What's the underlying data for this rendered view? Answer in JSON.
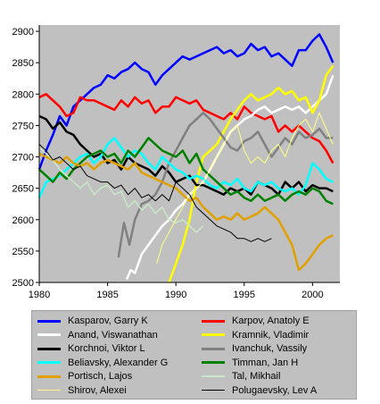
{
  "chart_data": {
    "type": "line",
    "title": "",
    "xlabel": "",
    "ylabel": "",
    "xlim": [
      1980,
      2002
    ],
    "ylim": [
      2500,
      2910
    ],
    "x_ticks": [
      1980,
      1985,
      1990,
      1995,
      2000
    ],
    "y_ticks": [
      2500,
      2550,
      2600,
      2650,
      2700,
      2750,
      2800,
      2850,
      2900
    ],
    "grid": false,
    "legend_position": "bottom",
    "plot_background": "#c0c0c0",
    "series": [
      {
        "name": "Kasparov, Garry K",
        "color": "#0000ff",
        "width": 2.5,
        "x": [
          1980,
          1980.5,
          1981,
          1981.5,
          1982,
          1982.5,
          1983,
          1983.5,
          1984,
          1984.5,
          1985,
          1985.5,
          1986,
          1986.5,
          1987,
          1987.5,
          1988,
          1988.5,
          1989,
          1989.5,
          1990,
          1990.5,
          1991,
          1991.5,
          1992,
          1992.5,
          1993,
          1993.5,
          1994,
          1994.5,
          1995,
          1995.5,
          1996,
          1996.5,
          1997,
          1997.5,
          1998,
          1998.5,
          1999,
          1999.5,
          2000,
          2000.5,
          2001,
          2001.5
        ],
        "y": [
          2680,
          2710,
          2735,
          2765,
          2750,
          2780,
          2790,
          2800,
          2810,
          2815,
          2830,
          2825,
          2835,
          2840,
          2850,
          2840,
          2835,
          2815,
          2830,
          2840,
          2850,
          2860,
          2855,
          2860,
          2865,
          2870,
          2875,
          2865,
          2870,
          2860,
          2865,
          2880,
          2870,
          2875,
          2860,
          2865,
          2855,
          2845,
          2870,
          2870,
          2885,
          2895,
          2875,
          2850
        ]
      },
      {
        "name": "Karpov, Anatoly E",
        "color": "#ff0000",
        "width": 2.5,
        "x": [
          1980,
          1980.5,
          1981,
          1981.5,
          1982,
          1982.5,
          1983,
          1983.5,
          1984,
          1984.5,
          1985,
          1985.5,
          1986,
          1986.5,
          1987,
          1987.5,
          1988,
          1988.5,
          1989,
          1989.5,
          1990,
          1990.5,
          1991,
          1991.5,
          1992,
          1992.5,
          1993,
          1993.5,
          1994,
          1994.5,
          1995,
          1995.5,
          1996,
          1996.5,
          1997,
          1997.5,
          1998,
          1998.5,
          1999,
          1999.5,
          2000,
          2000.5,
          2001,
          2001.5
        ],
        "y": [
          2795,
          2800,
          2790,
          2780,
          2765,
          2770,
          2795,
          2790,
          2790,
          2785,
          2780,
          2775,
          2790,
          2780,
          2795,
          2785,
          2790,
          2770,
          2780,
          2780,
          2795,
          2790,
          2785,
          2790,
          2775,
          2770,
          2765,
          2760,
          2770,
          2760,
          2780,
          2770,
          2765,
          2760,
          2765,
          2740,
          2750,
          2740,
          2750,
          2740,
          2730,
          2725,
          2710,
          2690
        ]
      },
      {
        "name": "Anand, Viswanathan",
        "color": "#ffffff",
        "width": 2.5,
        "x": [
          1986.4,
          1986.7,
          1987,
          1987.5,
          1988,
          1988.5,
          1989,
          1989.5,
          1990,
          1990.5,
          1991,
          1991.5,
          1992,
          1992.5,
          1993,
          1993.5,
          1994,
          1994.5,
          1995,
          1995.5,
          1996,
          1996.5,
          1997,
          1997.5,
          1998,
          1998.5,
          1999,
          1999.5,
          2000,
          2000.5,
          2001,
          2001.5
        ],
        "y": [
          2505,
          2520,
          2515,
          2545,
          2560,
          2575,
          2590,
          2600,
          2615,
          2625,
          2640,
          2650,
          2660,
          2680,
          2700,
          2720,
          2740,
          2750,
          2760,
          2765,
          2775,
          2780,
          2770,
          2775,
          2780,
          2775,
          2780,
          2770,
          2780,
          2790,
          2800,
          2830
        ]
      },
      {
        "name": "Kramnik, Vladimir",
        "color": "#ffff00",
        "width": 2.5,
        "x": [
          1989.5,
          1990,
          1990.5,
          1991,
          1991.5,
          1992,
          1992.5,
          1993,
          1993.5,
          1994,
          1994.5,
          1995,
          1995.5,
          1996,
          1996.5,
          1997,
          1997.5,
          1998,
          1998.5,
          1999,
          1999.5,
          2000,
          2000.5,
          2001,
          2001.5
        ],
        "y": [
          2500,
          2530,
          2560,
          2600,
          2660,
          2700,
          2710,
          2720,
          2740,
          2760,
          2775,
          2790,
          2800,
          2790,
          2795,
          2800,
          2810,
          2800,
          2805,
          2790,
          2795,
          2770,
          2790,
          2830,
          2845
        ]
      },
      {
        "name": "Korchnoi, Viktor L",
        "color": "#000000",
        "width": 2.5,
        "x": [
          1980,
          1980.5,
          1981,
          1981.5,
          1982,
          1982.5,
          1983,
          1983.5,
          1984,
          1984.5,
          1985,
          1985.5,
          1986,
          1986.5,
          1987,
          1987.5,
          1988,
          1988.5,
          1989,
          1989.5,
          1990,
          1990.5,
          1991,
          1991.5,
          1992,
          1992.5,
          1993,
          1993.5,
          1994,
          1994.5,
          1995,
          1995.5,
          1996,
          1996.5,
          1997,
          1997.5,
          1998,
          1998.5,
          1999,
          1999.5,
          2000,
          2000.5,
          2001,
          2001.5
        ],
        "y": [
          2765,
          2760,
          2745,
          2755,
          2740,
          2735,
          2720,
          2710,
          2700,
          2705,
          2690,
          2695,
          2680,
          2700,
          2690,
          2685,
          2680,
          2670,
          2685,
          2675,
          2660,
          2665,
          2670,
          2655,
          2655,
          2650,
          2645,
          2640,
          2650,
          2645,
          2650,
          2640,
          2660,
          2655,
          2650,
          2640,
          2660,
          2650,
          2660,
          2645,
          2655,
          2650,
          2650,
          2645
        ]
      },
      {
        "name": "Ivanchuk, Vassily",
        "color": "#808080",
        "width": 2.5,
        "x": [
          1985.8,
          1986.2,
          1986.6,
          1987,
          1987.5,
          1988,
          1988.5,
          1989,
          1989.5,
          1990,
          1990.5,
          1991,
          1991.5,
          1992,
          1992.5,
          1993,
          1993.5,
          1994,
          1994.5,
          1995,
          1995.5,
          1996,
          1996.5,
          1997,
          1997.5,
          1998,
          1998.5,
          1999,
          1999.5,
          2000,
          2000.5,
          2001,
          2001.5
        ],
        "y": [
          2540,
          2595,
          2560,
          2600,
          2625,
          2630,
          2640,
          2660,
          2690,
          2710,
          2730,
          2750,
          2760,
          2770,
          2760,
          2745,
          2730,
          2715,
          2710,
          2725,
          2730,
          2740,
          2720,
          2700,
          2715,
          2730,
          2720,
          2740,
          2730,
          2735,
          2745,
          2730,
          2730
        ]
      },
      {
        "name": "Beliavsky, Alexander G",
        "color": "#00ffff",
        "width": 2.5,
        "x": [
          1980,
          1980.5,
          1981,
          1981.5,
          1982,
          1982.5,
          1983,
          1983.5,
          1984,
          1984.5,
          1985,
          1985.5,
          1986,
          1986.5,
          1987,
          1987.5,
          1988,
          1988.5,
          1989,
          1989.5,
          1990,
          1990.5,
          1991,
          1991.5,
          1992,
          1992.5,
          1993,
          1993.5,
          1994,
          1994.5,
          1995,
          1995.5,
          1996,
          1996.5,
          1997,
          1997.5,
          1998,
          1998.5,
          1999,
          1999.5,
          2000,
          2000.5,
          2001,
          2001.5
        ],
        "y": [
          2635,
          2660,
          2665,
          2670,
          2680,
          2690,
          2700,
          2705,
          2690,
          2700,
          2720,
          2730,
          2715,
          2700,
          2710,
          2705,
          2690,
          2680,
          2700,
          2690,
          2680,
          2675,
          2665,
          2670,
          2665,
          2655,
          2650,
          2660,
          2655,
          2665,
          2650,
          2645,
          2660,
          2655,
          2660,
          2650,
          2645,
          2650,
          2640,
          2655,
          2690,
          2680,
          2665,
          2660
        ]
      },
      {
        "name": "Timman, Jan H",
        "color": "#008000",
        "width": 2.5,
        "x": [
          1980,
          1980.5,
          1981,
          1981.5,
          1982,
          1982.5,
          1983,
          1983.5,
          1984,
          1984.5,
          1985,
          1985.5,
          1986,
          1986.5,
          1987,
          1987.5,
          1988,
          1988.5,
          1989,
          1989.5,
          1990,
          1990.5,
          1991,
          1991.5,
          1992,
          1992.5,
          1993,
          1993.5,
          1994,
          1994.5,
          1995,
          1995.5,
          1996,
          1996.5,
          1997,
          1997.5,
          1998,
          1998.5,
          1999,
          1999.5,
          2000,
          2000.5,
          2001,
          2001.5
        ],
        "y": [
          2680,
          2670,
          2660,
          2675,
          2665,
          2680,
          2690,
          2700,
          2705,
          2710,
          2700,
          2705,
          2690,
          2710,
          2700,
          2715,
          2730,
          2720,
          2710,
          2705,
          2700,
          2710,
          2690,
          2705,
          2680,
          2670,
          2660,
          2650,
          2640,
          2645,
          2635,
          2630,
          2640,
          2630,
          2635,
          2640,
          2630,
          2640,
          2645,
          2640,
          2650,
          2645,
          2630,
          2625
        ]
      },
      {
        "name": "Portisch, Lajos",
        "color": "#e0a000",
        "width": 2.5,
        "x": [
          1980,
          1980.5,
          1981,
          1981.5,
          1982,
          1982.5,
          1983,
          1983.5,
          1984,
          1984.5,
          1985,
          1985.5,
          1986,
          1986.5,
          1987,
          1987.5,
          1988,
          1988.5,
          1989,
          1989.5,
          1990,
          1990.5,
          1991,
          1991.5,
          1992,
          1992.5,
          1993,
          1993.5,
          1994,
          1994.5,
          1995,
          1995.5,
          1996,
          1996.5,
          1997,
          1997.5,
          1998,
          1998.5,
          1999,
          1999.5,
          2000,
          2000.5,
          2001,
          2001.5
        ],
        "y": [
          2705,
          2700,
          2695,
          2690,
          2700,
          2690,
          2685,
          2690,
          2680,
          2690,
          2695,
          2690,
          2685,
          2680,
          2690,
          2675,
          2670,
          2665,
          2660,
          2655,
          2650,
          2640,
          2630,
          2635,
          2620,
          2610,
          2600,
          2605,
          2600,
          2610,
          2600,
          2605,
          2610,
          2620,
          2610,
          2600,
          2580,
          2560,
          2520,
          2530,
          2545,
          2560,
          2570,
          2575
        ]
      },
      {
        "name": "Tal, Mikhail",
        "color": "#c8e8c8",
        "width": 1.5,
        "x": [
          1980,
          1980.5,
          1981,
          1981.5,
          1982,
          1982.5,
          1983,
          1983.5,
          1984,
          1984.5,
          1985,
          1985.5,
          1986,
          1986.5,
          1987,
          1987.5,
          1988,
          1988.5,
          1989,
          1989.5,
          1990,
          1990.5,
          1991,
          1991.5,
          1992
        ],
        "y": [
          2715,
          2705,
          2695,
          2680,
          2670,
          2660,
          2650,
          2660,
          2640,
          2650,
          2655,
          2640,
          2645,
          2620,
          2630,
          2615,
          2625,
          2610,
          2620,
          2600,
          2595,
          2600,
          2590,
          2580,
          2590
        ]
      },
      {
        "name": "Shirov, Alexei",
        "color": "#ffff80",
        "width": 1,
        "x": [
          1988.6,
          1989,
          1989.5,
          1990,
          1990.5,
          1991,
          1991.5,
          1992,
          1992.5,
          1993,
          1993.5,
          1994,
          1994.5,
          1995,
          1995.5,
          1996,
          1996.5,
          1997,
          1997.5,
          1998,
          1998.5,
          1999,
          1999.5,
          2000,
          2000.5,
          2001,
          2001.5
        ],
        "y": [
          2530,
          2560,
          2580,
          2600,
          2620,
          2640,
          2650,
          2660,
          2680,
          2700,
          2720,
          2740,
          2750,
          2710,
          2690,
          2700,
          2690,
          2710,
          2720,
          2700,
          2730,
          2750,
          2760,
          2740,
          2770,
          2745,
          2720
        ]
      },
      {
        "name": "Polugaevsky, Lev A",
        "color": "#000000",
        "width": 1,
        "x": [
          1980,
          1980.5,
          1981,
          1981.5,
          1982,
          1982.5,
          1983,
          1983.5,
          1984,
          1984.5,
          1985,
          1985.5,
          1986,
          1986.5,
          1987,
          1987.5,
          1988,
          1988.5,
          1989,
          1989.5,
          1990,
          1990.5,
          1991,
          1991.5,
          1992,
          1992.5,
          1993,
          1993.5,
          1994,
          1994.5,
          1995,
          1995.5,
          1996,
          1996.5,
          1997
        ],
        "y": [
          2720,
          2710,
          2695,
          2700,
          2690,
          2680,
          2685,
          2670,
          2665,
          2660,
          2660,
          2650,
          2655,
          2640,
          2650,
          2635,
          2640,
          2630,
          2640,
          2630,
          2660,
          2650,
          2640,
          2620,
          2610,
          2600,
          2590,
          2585,
          2580,
          2570,
          2570,
          2565,
          2570,
          2565,
          2570
        ]
      }
    ]
  }
}
